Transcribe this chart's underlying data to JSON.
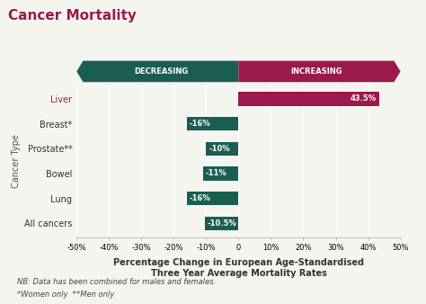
{
  "title": "Cancer Mortality",
  "categories": [
    "Liver",
    "Breast*",
    "Prostate**",
    "Bowel",
    "Lung",
    "All cancers"
  ],
  "values": [
    43.5,
    -16,
    -10,
    -11,
    -16,
    -10.5
  ],
  "bar_colors": [
    "#9b1a4b",
    "#1a5e52",
    "#1a5e52",
    "#1a5e52",
    "#1a5e52",
    "#1a5e52"
  ],
  "label_colors": [
    "#9b1a4b",
    "#333333",
    "#333333",
    "#333333",
    "#333333",
    "#333333"
  ],
  "bar_labels": [
    "43.5%",
    "-16%",
    "-10%",
    "-11%",
    "-16%",
    "-10.5%"
  ],
  "xlabel_line1": "Percentage Change in European Age-Standardised",
  "xlabel_line2": "Three Year Average Mortality Rates",
  "ylabel": "Cancer Type",
  "xlim": [
    -50,
    50
  ],
  "xticks": [
    -50,
    -40,
    -30,
    -20,
    -10,
    0,
    10,
    20,
    30,
    40,
    50
  ],
  "xtick_labels": [
    "-50%",
    "-40%",
    "-30%",
    "-20%",
    "-10%",
    "0",
    "10%",
    "20%",
    "30%",
    "40%",
    "50%"
  ],
  "decreasing_color": "#1a5e52",
  "increasing_color": "#9b1a4b",
  "decreasing_label": "DECREASING",
  "increasing_label": "INCREASING",
  "footnote1": "NB: Data has been combined for males and females.",
  "footnote2": "*Women only  **Men only",
  "bg_color": "#f5f5f0",
  "title_color": "#9b1a4b",
  "title_fontsize": 11,
  "ylabel_fontsize": 7,
  "xlabel_fontsize": 7,
  "tick_fontsize": 6,
  "bar_label_fontsize": 6,
  "footnote_fontsize": 6,
  "banner_label_fontsize": 6
}
